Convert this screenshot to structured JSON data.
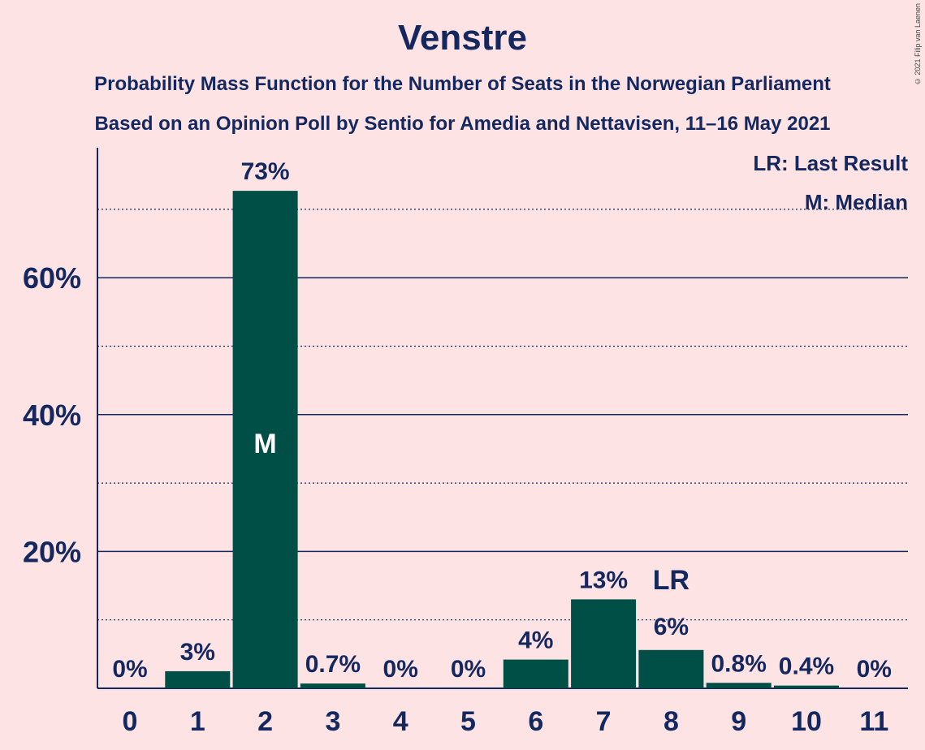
{
  "chart_data": {
    "type": "bar",
    "title": "Venstre",
    "subtitle_1": "Probability Mass Function for the Number of Seats in the Norwegian Parliament",
    "subtitle_2": "Based on an Opinion Poll by Sentio for Amedia and Nettavisen, 11–16 May 2021",
    "categories": [
      "0",
      "1",
      "2",
      "3",
      "4",
      "5",
      "6",
      "7",
      "8",
      "9",
      "10",
      "11"
    ],
    "values": [
      0,
      2.5,
      72.7,
      0.7,
      0,
      0,
      4.2,
      13.0,
      5.6,
      0.8,
      0.4,
      0
    ],
    "value_labels": [
      "0%",
      "3%",
      "73%",
      "0.7%",
      "0%",
      "0%",
      "4%",
      "13%",
      "6%",
      "0.8%",
      "0.4%",
      "0%"
    ],
    "yticks": [
      20,
      40,
      60
    ],
    "ytick_labels": [
      "20%",
      "40%",
      "60%"
    ],
    "ylim": [
      0,
      79
    ],
    "gridlines_major": [
      20,
      40,
      60
    ],
    "gridlines_minor": [
      10,
      30,
      50,
      70
    ],
    "median_index": 2,
    "median_label": "M",
    "last_result_index": 8,
    "last_result_label": "LR",
    "legend": [
      "LR: Last Result",
      "M: Median"
    ],
    "bar_color": "#004f47",
    "background_color": "#fde3e3",
    "text_color": "#14285f"
  },
  "copyright": "© 2021 Filip van Laenen"
}
